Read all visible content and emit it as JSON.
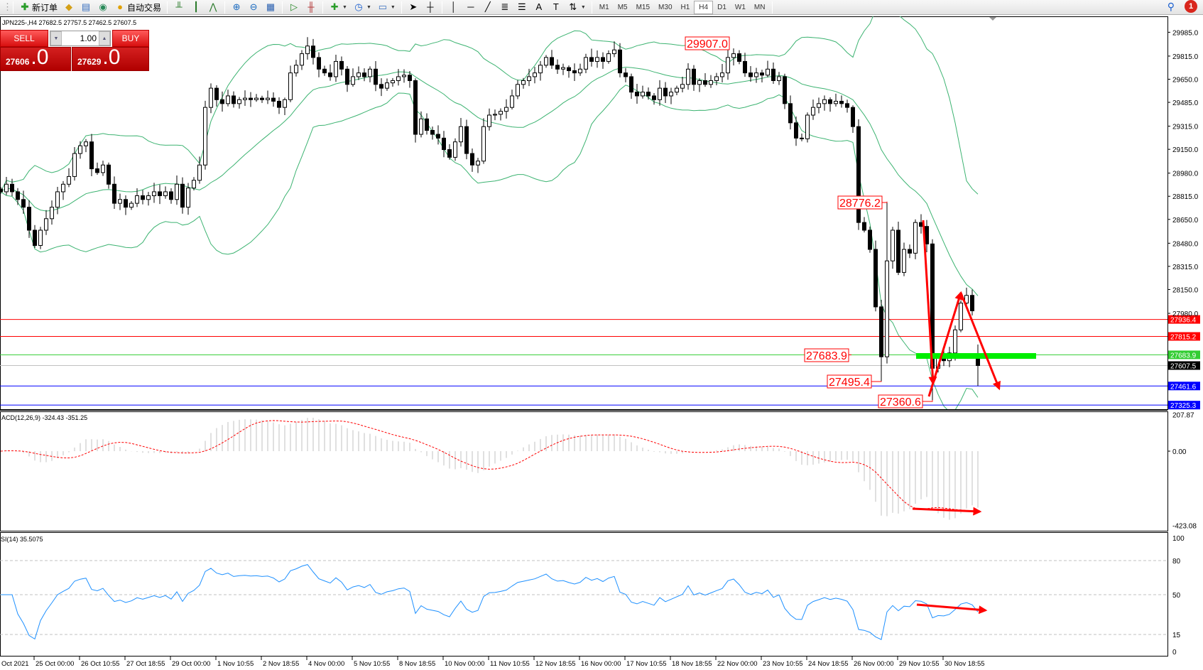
{
  "toolbar": {
    "new_order_label": "新订单",
    "auto_trading_label": "自动交易",
    "timeframes": [
      "M1",
      "M5",
      "M15",
      "M30",
      "H1",
      "H4",
      "D1",
      "W1",
      "MN"
    ],
    "active_timeframe": "H4",
    "notification_count": "1"
  },
  "chart": {
    "info_line": "JPN225-,H4  27682.5 27757.5 27462.5 27607.5",
    "last_bar": {
      "open": 27682.5,
      "high": 27757.5,
      "low": 27462.5,
      "close": 27607.5
    },
    "bull_color": "#ffffff",
    "bear_color": "#000000",
    "band_color": "#3cb371",
    "closes": [
      28847,
      28901,
      28847,
      28792,
      28737,
      28573,
      28464,
      28573,
      28655,
      28737,
      28847,
      28901,
      28956,
      29120,
      29175,
      29203,
      29011,
      28984,
      29038,
      28901,
      28765,
      28792,
      28737,
      28765,
      28819,
      28792,
      28819,
      28847,
      28819,
      28847,
      28792,
      28901,
      28737,
      28874,
      28929,
      29038,
      29449,
      29586,
      29504,
      29476,
      29531,
      29476,
      29504,
      29515,
      29504,
      29515,
      29504,
      29515,
      29493,
      29449,
      29504,
      29695,
      29750,
      29832,
      29887,
      29805,
      29722,
      29695,
      29668,
      29777,
      29722,
      29613,
      29668,
      29695,
      29668,
      29722,
      29613,
      29586,
      29624,
      29640,
      29668,
      29679,
      29640,
      29257,
      29367,
      29285,
      29257,
      29230,
      29148,
      29093,
      29203,
      29312,
      29120,
      29038,
      29066,
      29312,
      29394,
      29400,
      29421,
      29449,
      29531,
      29613,
      29640,
      29668,
      29695,
      29750,
      29805,
      29750,
      29722,
      29733,
      29711,
      29695,
      29722,
      29805,
      29777,
      29805,
      29777,
      29832,
      29859,
      29695,
      29668,
      29558,
      29531,
      29558,
      29531,
      29504,
      29586,
      29531,
      29558,
      29586,
      29613,
      29722,
      29613,
      29640,
      29613,
      29640,
      29668,
      29695,
      29805,
      29832,
      29777,
      29695,
      29668,
      29695,
      29679,
      29722,
      29640,
      29668,
      29476,
      29339,
      29230,
      29225,
      29394,
      29449,
      29476,
      29504,
      29476,
      29493,
      29476,
      29449,
      29312,
      28628,
      28573,
      28436,
      28026,
      27670,
      28354,
      28573,
      28272,
      28436,
      28409,
      28628,
      28600,
      28475,
      27588,
      27670,
      27642,
      27697,
      27862,
      28053,
      28108,
      27998,
      27607.5
    ]
  },
  "trade_panel": {
    "sell_label": "SELL",
    "buy_label": "BUY",
    "lot": "1.00",
    "sell_price_main": "27606",
    "sell_price_frac": ".0",
    "buy_price_main": "27629",
    "buy_price_frac": ".0"
  },
  "price_axis": [
    "29985.0",
    "29815.0",
    "29650.0",
    "29485.0",
    "29315.0",
    "29150.0",
    "28980.0",
    "28815.0",
    "28650.0",
    "28480.0",
    "28315.0",
    "28150.0",
    "27980.0"
  ],
  "hlines": [
    {
      "value": "27936.4",
      "color": "#ff0000"
    },
    {
      "value": "27815.2",
      "color": "#ff0000"
    },
    {
      "value": "27683.9",
      "color": "#32cd32"
    },
    {
      "value": "27607.5",
      "color": "#000000",
      "line": "#c0c0c0"
    },
    {
      "value": "27461.6",
      "color": "#0000ff"
    },
    {
      "value": "27325.3",
      "color": "#0000ff"
    }
  ],
  "annotations": [
    {
      "text": "29907.0",
      "value": 29907.0
    },
    {
      "text": "28776.2",
      "value": 28776.2
    },
    {
      "text": "27683.9",
      "value": 27683.9
    },
    {
      "text": "27495.4",
      "value": 27495.4
    },
    {
      "text": "27360.6",
      "value": 27360.6
    }
  ],
  "drawing_color": "#ff0000",
  "support_zone_color": "#00ee00",
  "macd": {
    "label": "ACD(12,26,9) -324.43 -351.25",
    "axis": [
      "207.87",
      "0.00",
      "-423.08"
    ],
    "range": [
      -423.08,
      207.87
    ],
    "histogram_color": "#c0c0c0",
    "signal_color": "#ff0000"
  },
  "rsi": {
    "label": "SI(14) 35.5075",
    "axis": [
      "100",
      "80",
      "50",
      "15",
      "0"
    ],
    "levels": [
      80,
      50,
      15
    ],
    "line_color": "#1e90ff"
  },
  "time_axis": [
    "Oct 2021",
    "25 Oct 00:00",
    "26 Oct 10:55",
    "27 Oct 18:55",
    "29 Oct 00:00",
    "1 Nov 10:55",
    "2 Nov 18:55",
    "4 Nov 00:00",
    "5 Nov 10:55",
    "8 Nov 18:55",
    "10 Nov 00:00",
    "11 Nov 10:55",
    "12 Nov 18:55",
    "16 Nov 00:00",
    "17 Nov 10:55",
    "18 Nov 18:55",
    "22 Nov 00:00",
    "23 Nov 10:55",
    "24 Nov 18:55",
    "26 Nov 00:00",
    "29 Nov 10:55",
    "30 Nov 18:55"
  ]
}
